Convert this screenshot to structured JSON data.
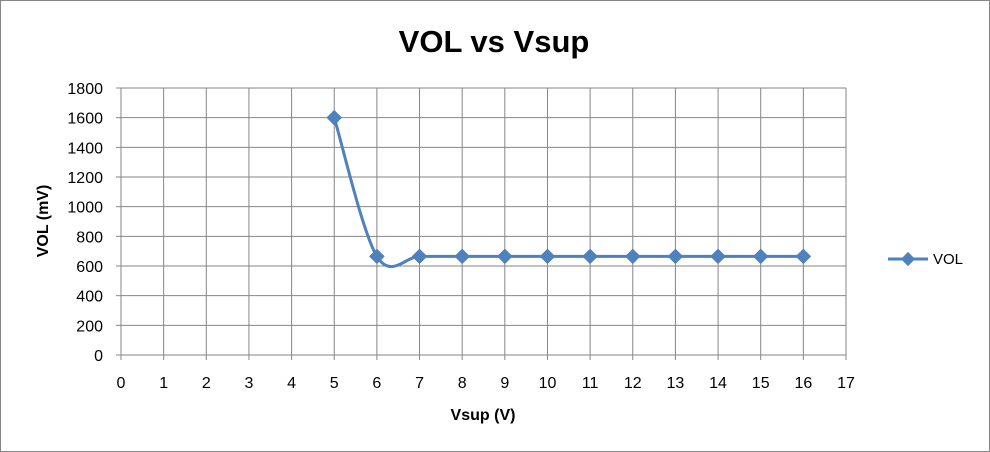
{
  "chart_data": {
    "type": "scatter",
    "title": "VOL vs Vsup",
    "xlabel": "Vsup (V)",
    "ylabel": "VOL (mV)",
    "xlim": [
      0,
      17
    ],
    "ylim": [
      0,
      1800
    ],
    "xticks": [
      0,
      1,
      2,
      3,
      4,
      5,
      6,
      7,
      8,
      9,
      10,
      11,
      12,
      13,
      14,
      15,
      16,
      17
    ],
    "yticks": [
      0,
      200,
      400,
      600,
      800,
      1000,
      1200,
      1400,
      1600,
      1800
    ],
    "grid": true,
    "legend_position": "right",
    "line_style": "smoothed lines with markers",
    "series": [
      {
        "name": "VOL",
        "color": "#4F81BD",
        "marker": "diamond",
        "x": [
          5,
          6,
          7,
          8,
          9,
          10,
          11,
          12,
          13,
          14,
          15,
          16
        ],
        "y": [
          1600,
          665,
          665,
          665,
          665,
          665,
          665,
          665,
          665,
          665,
          665,
          665
        ]
      }
    ]
  }
}
